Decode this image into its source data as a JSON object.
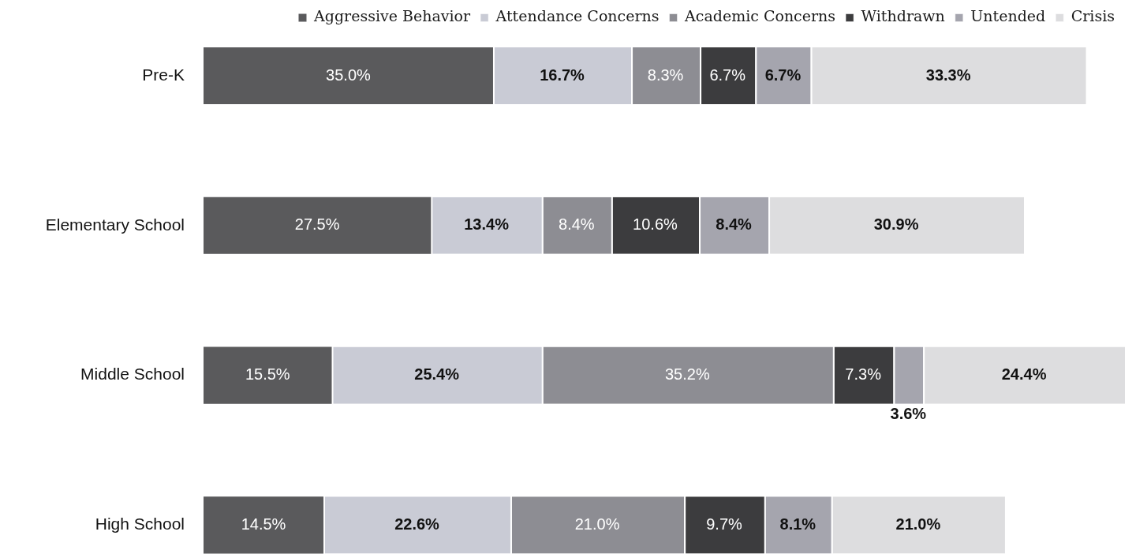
{
  "chart_data": {
    "type": "bar",
    "orientation": "horizontal",
    "stacked": true,
    "legend": "top right",
    "tick_labels": "y",
    "categories": [
      "Pre-K",
      "Elementary School",
      "Middle School",
      "High School"
    ],
    "series": [
      {
        "name": "Aggressive Behavior",
        "color": "#5a5a5c",
        "values": [
          35.0,
          27.5,
          15.5,
          14.5
        ],
        "value_labels": [
          "35.0%",
          "27.5%",
          "15.5%",
          "14.5%"
        ]
      },
      {
        "name": "Attendance Concerns",
        "color": "#c9cbd5",
        "values": [
          16.7,
          13.4,
          25.4,
          22.6
        ],
        "value_labels": [
          "16.7%",
          "13.4%",
          "25.4%",
          "22.6%"
        ]
      },
      {
        "name": "Academic Concerns",
        "color": "#8d8d93",
        "values": [
          8.3,
          8.4,
          35.2,
          21.0
        ],
        "value_labels": [
          "8.3%",
          "8.4%",
          "35.2%",
          "21.0%"
        ]
      },
      {
        "name": "Withdrawn",
        "color": "#3c3c3e",
        "values": [
          6.7,
          10.6,
          7.3,
          9.7
        ],
        "value_labels": [
          "6.7%",
          "10.6%",
          "7.3%",
          "9.7%"
        ]
      },
      {
        "name": "Untended",
        "color": "#a5a5ae",
        "values": [
          6.7,
          8.4,
          3.6,
          8.1
        ],
        "value_labels": [
          "6.7%",
          "8.4%",
          "3.6%",
          "8.1%"
        ]
      },
      {
        "name": "Crisis",
        "color": "#dddddf",
        "values": [
          33.3,
          30.9,
          24.4,
          21.0
        ],
        "value_labels": [
          "33.3%",
          "30.9%",
          "24.4%",
          "21.0%"
        ]
      }
    ]
  }
}
